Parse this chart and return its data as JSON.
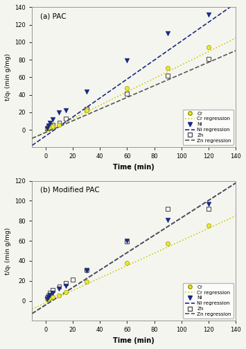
{
  "panel_a": {
    "title": "(a) PAC",
    "ylabel": "t/qₜ (min g/mg)",
    "xlabel": "Time (min)",
    "xlim": [
      -10,
      140
    ],
    "ylim": [
      -20,
      140
    ],
    "xticks": [
      0,
      20,
      40,
      60,
      80,
      100,
      120,
      140
    ],
    "yticks": [
      0,
      20,
      40,
      60,
      80,
      100,
      120,
      140
    ],
    "Cr_x": [
      1,
      2,
      3,
      5,
      10,
      30,
      60,
      90,
      120
    ],
    "Cr_y": [
      1.5,
      2.5,
      3.0,
      4.0,
      6.0,
      22.0,
      48.0,
      71.0,
      94.0
    ],
    "Ni_x": [
      1,
      2,
      3,
      5,
      10,
      15,
      30,
      60,
      90,
      120
    ],
    "Ni_y": [
      2.0,
      5.0,
      8.0,
      12.0,
      20.0,
      22.0,
      44.0,
      79.0,
      110.0,
      132.0
    ],
    "Zn_x": [
      1,
      2,
      3,
      5,
      10,
      15,
      30,
      60,
      90,
      120
    ],
    "Zn_y": [
      1.5,
      3.0,
      4.5,
      6.0,
      8.0,
      13.0,
      24.0,
      41.0,
      62.0,
      81.0
    ],
    "Cr_reg": [
      0.766,
      -2.5
    ],
    "Ni_reg": [
      1.083,
      -7.0
    ],
    "Zn_reg": [
      0.668,
      -3.0
    ]
  },
  "panel_b": {
    "title": "(b) Modified PAC",
    "ylabel": "t/qₜ (min g/mg)",
    "xlabel": "Time (min)",
    "xlim": [
      -10,
      140
    ],
    "ylim": [
      -20,
      120
    ],
    "xticks": [
      0,
      20,
      40,
      60,
      80,
      100,
      120,
      140
    ],
    "yticks": [
      0,
      20,
      40,
      60,
      80,
      100,
      120
    ],
    "Cr_x": [
      1,
      2,
      3,
      5,
      10,
      15,
      30,
      60,
      90,
      120
    ],
    "Cr_y": [
      1.5,
      2.0,
      3.0,
      4.0,
      5.0,
      9.0,
      19.0,
      38.0,
      57.0,
      75.0
    ],
    "Ni_x": [
      1,
      2,
      3,
      5,
      10,
      15,
      30,
      60,
      90,
      120
    ],
    "Ni_y": [
      2.0,
      4.0,
      6.0,
      8.0,
      12.0,
      15.0,
      30.0,
      60.0,
      81.0,
      97.0
    ],
    "Zn_x": [
      1,
      2,
      3,
      5,
      10,
      15,
      20,
      30,
      60,
      90,
      120
    ],
    "Zn_y": [
      3.0,
      5.0,
      8.0,
      11.0,
      14.0,
      18.0,
      21.0,
      31.0,
      59.0,
      92.0,
      92.0
    ],
    "Cr_reg": [
      0.621,
      -2.0
    ],
    "Ni_reg": [
      0.87,
      -4.0
    ],
    "Zn_reg": [
      0.87,
      -4.0
    ]
  },
  "colors": {
    "Cr": "#e8e832",
    "Cr_edge": "#999900",
    "Cr_reg": "#cccc00",
    "Ni": "#1a2a80",
    "Ni_reg": "#1a2a80",
    "Zn_reg": "#555555"
  },
  "bg_color": "#f5f5f0"
}
